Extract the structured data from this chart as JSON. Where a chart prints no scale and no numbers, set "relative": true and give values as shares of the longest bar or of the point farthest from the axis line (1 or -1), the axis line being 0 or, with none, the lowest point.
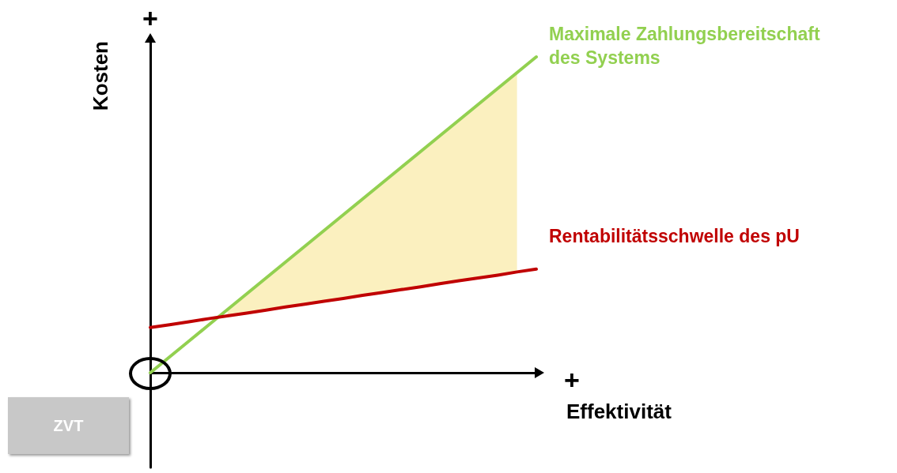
{
  "chart_data": {
    "type": "line",
    "relative": true,
    "xlabel": "Effektivität",
    "ylabel": "Kosten",
    "marker": "none",
    "categories": [
      null,
      null,
      null,
      null,
      null,
      null,
      null,
      null,
      null,
      null,
      null,
      null,
      null,
      null,
      null,
      null,
      null,
      null,
      null,
      null,
      null
    ],
    "series": [
      {
        "name": "Maximale Zahlungsbereitschaft des Systems",
        "color": "#92d050",
        "values": [
          0,
          0.05,
          0.1,
          0.15,
          0.2,
          0.25,
          0.3,
          0.35,
          0.4,
          0.45,
          0.5,
          0.55,
          0.6,
          0.65,
          0.7,
          0.75,
          0.8,
          0.85,
          0.9,
          0.95,
          1
        ],
        "lower": [
          null,
          null,
          null,
          null,
          0.18,
          0.189,
          0.198,
          0.208,
          0.217,
          0.226,
          0.235,
          0.245,
          0.254,
          0.263,
          0.272,
          0.282,
          0.291,
          0.3,
          0.309,
          0.319,
          null
        ],
        "upper": [
          null,
          null,
          null,
          null,
          0.2,
          0.25,
          0.3,
          0.35,
          0.4,
          0.45,
          0.5,
          0.55,
          0.6,
          0.65,
          0.7,
          0.75,
          0.8,
          0.85,
          0.9,
          0.95,
          null
        ]
      },
      {
        "name": "Rentabilitätsschwelle des pU",
        "color": "#c00000",
        "values": [
          0.143,
          0.152,
          0.161,
          0.171,
          0.18,
          0.189,
          0.198,
          0.208,
          0.217,
          0.226,
          0.235,
          0.245,
          0.254,
          0.263,
          0.272,
          0.282,
          0.291,
          0.3,
          0.309,
          0.319,
          0.328
        ]
      }
    ],
    "annotations": [
      "+",
      "+",
      "ZVT"
    ]
  }
}
